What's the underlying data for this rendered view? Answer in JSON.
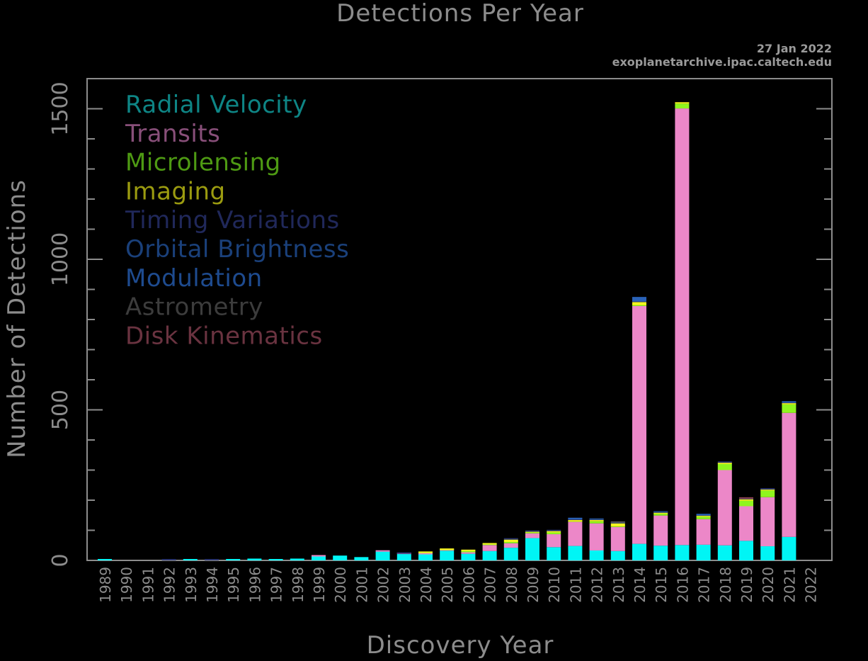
{
  "chart_data": {
    "type": "bar",
    "stacked": true,
    "title": "Detections Per Year",
    "date_text": "27 Jan 2022",
    "source_text": "exoplanetarchive.ipac.caltech.edu",
    "xlabel": "Discovery Year",
    "ylabel": "Number of Detections",
    "ylim": [
      0,
      1600
    ],
    "yticks": [
      0,
      500,
      1000,
      1500
    ],
    "grid": false,
    "legend_position": "top-left",
    "categories": [
      "1989",
      "1990",
      "1991",
      "1992",
      "1993",
      "1994",
      "1995",
      "1996",
      "1997",
      "1998",
      "1999",
      "2000",
      "2001",
      "2002",
      "2003",
      "2004",
      "2005",
      "2006",
      "2007",
      "2008",
      "2009",
      "2010",
      "2011",
      "2012",
      "2013",
      "2014",
      "2015",
      "2016",
      "2017",
      "2018",
      "2019",
      "2020",
      "2021",
      "2022"
    ],
    "series": [
      {
        "name": "Radial Velocity",
        "legend_color": "#0e8585",
        "color": "#00f5f5",
        "values": [
          1,
          0,
          0,
          0,
          1,
          0,
          1,
          6,
          1,
          6,
          13,
          16,
          11,
          29,
          21,
          20,
          32,
          22,
          31,
          42,
          74,
          44,
          48,
          33,
          31,
          55,
          49,
          51,
          52,
          50,
          65,
          47,
          78,
          0
        ]
      },
      {
        "name": "Transits",
        "legend_color": "#884f79",
        "color": "#ec87c8",
        "values": [
          0,
          0,
          0,
          0,
          0,
          0,
          0,
          0,
          0,
          0,
          1,
          0,
          0,
          1,
          1,
          4,
          2,
          5,
          20,
          15,
          16,
          43,
          80,
          90,
          80,
          790,
          100,
          1450,
          85,
          250,
          115,
          163,
          412,
          0
        ]
      },
      {
        "name": "Microlensing",
        "legend_color": "#4e9a13",
        "color": "#8ff51e",
        "values": [
          0,
          0,
          0,
          0,
          0,
          0,
          0,
          0,
          0,
          0,
          0,
          0,
          0,
          0,
          0,
          1,
          1,
          4,
          2,
          4,
          3,
          6,
          1,
          7,
          2,
          3,
          6,
          16,
          8,
          20,
          18,
          22,
          28,
          0
        ]
      },
      {
        "name": "Imaging",
        "legend_color": "#9b9b10",
        "color": "#f5f51e",
        "values": [
          0,
          0,
          0,
          0,
          0,
          0,
          0,
          0,
          0,
          0,
          0,
          0,
          0,
          0,
          0,
          3,
          1,
          2,
          1,
          8,
          2,
          4,
          5,
          4,
          10,
          10,
          3,
          4,
          3,
          4,
          5,
          3,
          4,
          0
        ]
      },
      {
        "name": "Timing Variations",
        "legend_color": "#20285a",
        "color": "#2a3570",
        "values": [
          0,
          0,
          0,
          1,
          0,
          1,
          0,
          0,
          0,
          0,
          0,
          0,
          0,
          0,
          1,
          0,
          0,
          0,
          0,
          1,
          1,
          1,
          2,
          1,
          1,
          2,
          1,
          0,
          1,
          1,
          2,
          1,
          2,
          0
        ]
      },
      {
        "name": "Orbital Brightness",
        "legend_color": "#1a407a",
        "color": "#1f4a8a",
        "values": [
          0,
          0,
          0,
          0,
          0,
          0,
          0,
          0,
          0,
          0,
          0,
          0,
          0,
          0,
          0,
          0,
          0,
          0,
          0,
          0,
          0,
          0,
          1,
          1,
          1,
          0,
          1,
          0,
          1,
          0,
          0,
          0,
          0,
          0
        ]
      },
      {
        "name": "Modulation",
        "legend_color": "#1e4b8f",
        "color": "#2a62b8",
        "values": [
          0,
          0,
          0,
          0,
          0,
          0,
          0,
          0,
          0,
          0,
          0,
          0,
          0,
          0,
          0,
          0,
          0,
          0,
          0,
          0,
          0,
          0,
          1,
          0,
          0,
          15,
          0,
          0,
          1,
          0,
          0,
          0,
          3,
          0
        ]
      },
      {
        "name": "Astrometry",
        "legend_color": "#3c3c3c",
        "color": "#555555",
        "values": [
          0,
          0,
          0,
          0,
          0,
          0,
          0,
          0,
          0,
          0,
          0,
          0,
          0,
          0,
          0,
          0,
          0,
          0,
          0,
          0,
          0,
          0,
          0,
          0,
          1,
          0,
          0,
          0,
          0,
          0,
          0,
          0,
          0,
          0
        ]
      },
      {
        "name": "Disk Kinematics",
        "legend_color": "#6a3340",
        "color": "#8a4050",
        "values": [
          0,
          0,
          0,
          0,
          0,
          0,
          0,
          0,
          0,
          0,
          0,
          0,
          0,
          0,
          0,
          0,
          0,
          0,
          0,
          0,
          0,
          0,
          0,
          0,
          0,
          0,
          0,
          0,
          0,
          0,
          1,
          0,
          0,
          0
        ]
      }
    ]
  }
}
